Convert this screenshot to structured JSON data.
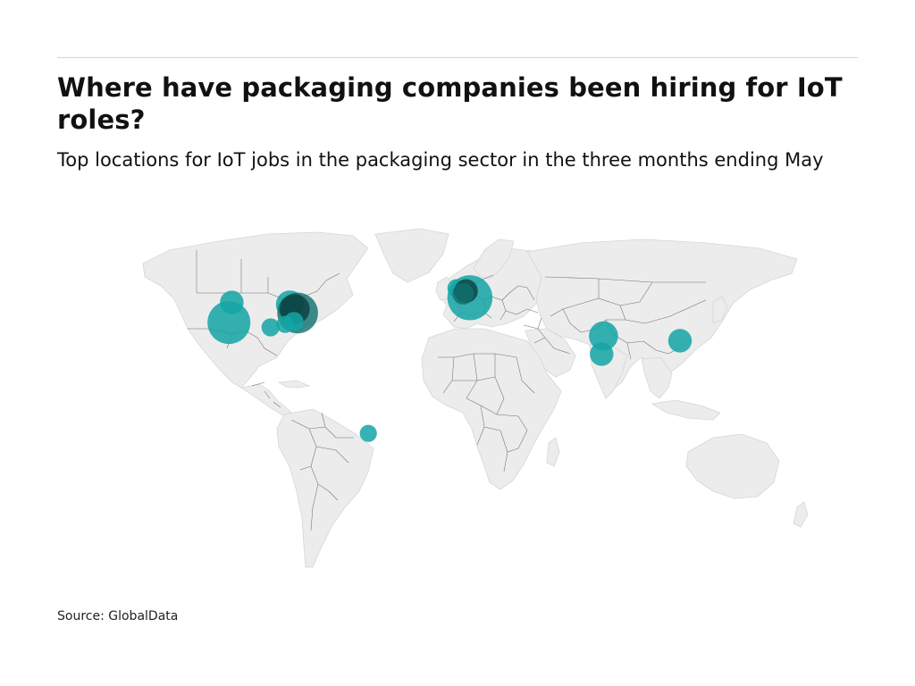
{
  "title": "Where have packaging companies been hiring for IoT roles?",
  "subtitle": "Top locations for IoT jobs in the packaging sector in the three months ending May",
  "source": "Source: GlobalData",
  "colors": {
    "bubble": "#14a5a5",
    "bubble_dark": "#0b3b3b",
    "land": "#ececec",
    "border": "#6f6f6f"
  },
  "map": {
    "projection": "equirectangular",
    "bubbles": [
      {
        "id": "us-west-coast",
        "lon": -119.0,
        "lat": 35.0,
        "size": 1.0,
        "shade": 0
      },
      {
        "id": "us-northwest",
        "lon": -117.5,
        "lat": 45.5,
        "size": 0.55,
        "shade": 0
      },
      {
        "id": "us-south",
        "lon": -97.5,
        "lat": 32.5,
        "size": 0.42,
        "shade": 0
      },
      {
        "id": "us-midwest",
        "lon": -87.5,
        "lat": 44.5,
        "size": 0.65,
        "shade": 0
      },
      {
        "id": "us-east-1",
        "lon": -83.5,
        "lat": 40.0,
        "size": 0.95,
        "shade": 1
      },
      {
        "id": "us-east-2",
        "lon": -85.0,
        "lat": 42.0,
        "size": 0.7,
        "shade": 2
      },
      {
        "id": "us-southeast",
        "lon": -85.5,
        "lat": 35.5,
        "size": 0.45,
        "shade": 0
      },
      {
        "id": "us-southeast-2",
        "lon": -90.0,
        "lat": 34.0,
        "size": 0.4,
        "shade": 0
      },
      {
        "id": "uk",
        "lon": -1.5,
        "lat": 53.0,
        "size": 0.42,
        "shade": 0
      },
      {
        "id": "europe-west",
        "lon": 5.5,
        "lat": 48.0,
        "size": 1.05,
        "shade": 0
      },
      {
        "id": "europe-benelux",
        "lon": 3.5,
        "lat": 51.5,
        "size": 0.55,
        "shade": 2
      },
      {
        "id": "europe-france",
        "lon": 2.0,
        "lat": 50.0,
        "size": 0.5,
        "shade": 1
      },
      {
        "id": "india-north",
        "lon": 74.5,
        "lat": 28.0,
        "size": 0.68,
        "shade": 0
      },
      {
        "id": "india-south",
        "lon": 73.5,
        "lat": 18.5,
        "size": 0.55,
        "shade": 0
      },
      {
        "id": "southeast-china",
        "lon": 114.0,
        "lat": 25.5,
        "size": 0.55,
        "shade": 0
      },
      {
        "id": "brazil",
        "lon": -47.0,
        "lat": -23.0,
        "size": 0.4,
        "shade": 0
      }
    ]
  }
}
